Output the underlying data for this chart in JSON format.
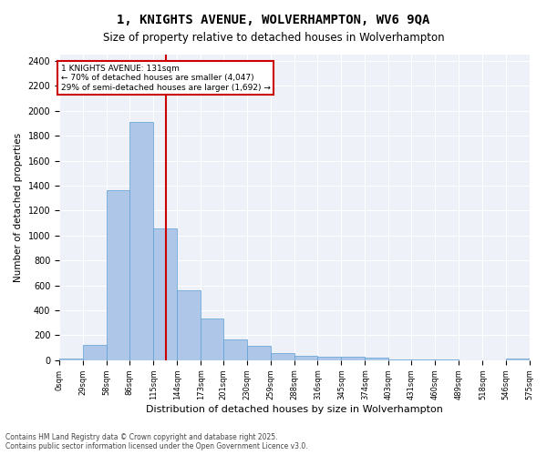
{
  "title_line1": "1, KNIGHTS AVENUE, WOLVERHAMPTON, WV6 9QA",
  "title_line2": "Size of property relative to detached houses in Wolverhampton",
  "xlabel": "Distribution of detached houses by size in Wolverhampton",
  "ylabel": "Number of detached properties",
  "footer_line1": "Contains HM Land Registry data © Crown copyright and database right 2025.",
  "footer_line2": "Contains public sector information licensed under the Open Government Licence v3.0.",
  "annotation_line1": "1 KNIGHTS AVENUE: 131sqm",
  "annotation_line2": "← 70% of detached houses are smaller (4,047)",
  "annotation_line3": "29% of semi-detached houses are larger (1,692) →",
  "property_size": 131,
  "bin_edges": [
    0,
    29,
    58,
    86,
    115,
    144,
    173,
    201,
    230,
    259,
    288,
    316,
    345,
    374,
    403,
    431,
    460,
    489,
    518,
    546,
    575
  ],
  "bin_counts": [
    15,
    125,
    1360,
    1910,
    1055,
    560,
    335,
    170,
    115,
    60,
    38,
    30,
    25,
    18,
    8,
    5,
    3,
    2,
    1,
    14
  ],
  "bar_color": "#aec6e8",
  "bar_edge_color": "#5a9fd4",
  "vline_color": "#cc0000",
  "vline_x": 131,
  "annotation_box_color": "#cc0000",
  "background_color": "#eef2f8",
  "ylim": [
    0,
    2450
  ],
  "yticks": [
    0,
    200,
    400,
    600,
    800,
    1000,
    1200,
    1400,
    1600,
    1800,
    2000,
    2200,
    2400
  ]
}
